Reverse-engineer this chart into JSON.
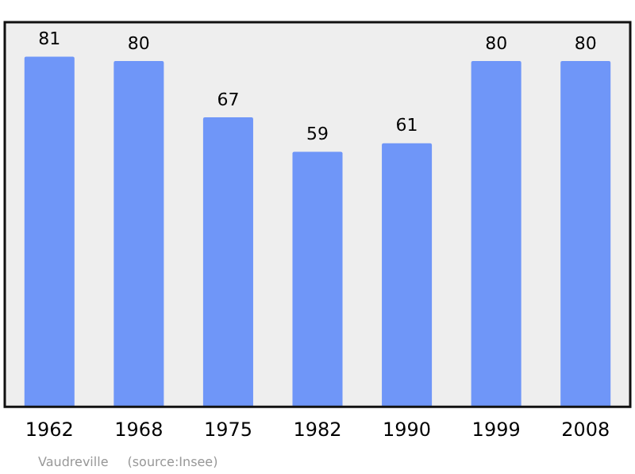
{
  "chart_data": {
    "type": "bar",
    "categories": [
      "1962",
      "1968",
      "1975",
      "1982",
      "1990",
      "1999",
      "2008"
    ],
    "values": [
      81,
      80,
      67,
      59,
      61,
      80,
      80
    ],
    "color": "#6f96f8",
    "ylim": [
      0,
      89
    ],
    "data_labels": true,
    "legend": false,
    "annotations": [
      "Vaudreville",
      "(source:Insee)"
    ]
  }
}
